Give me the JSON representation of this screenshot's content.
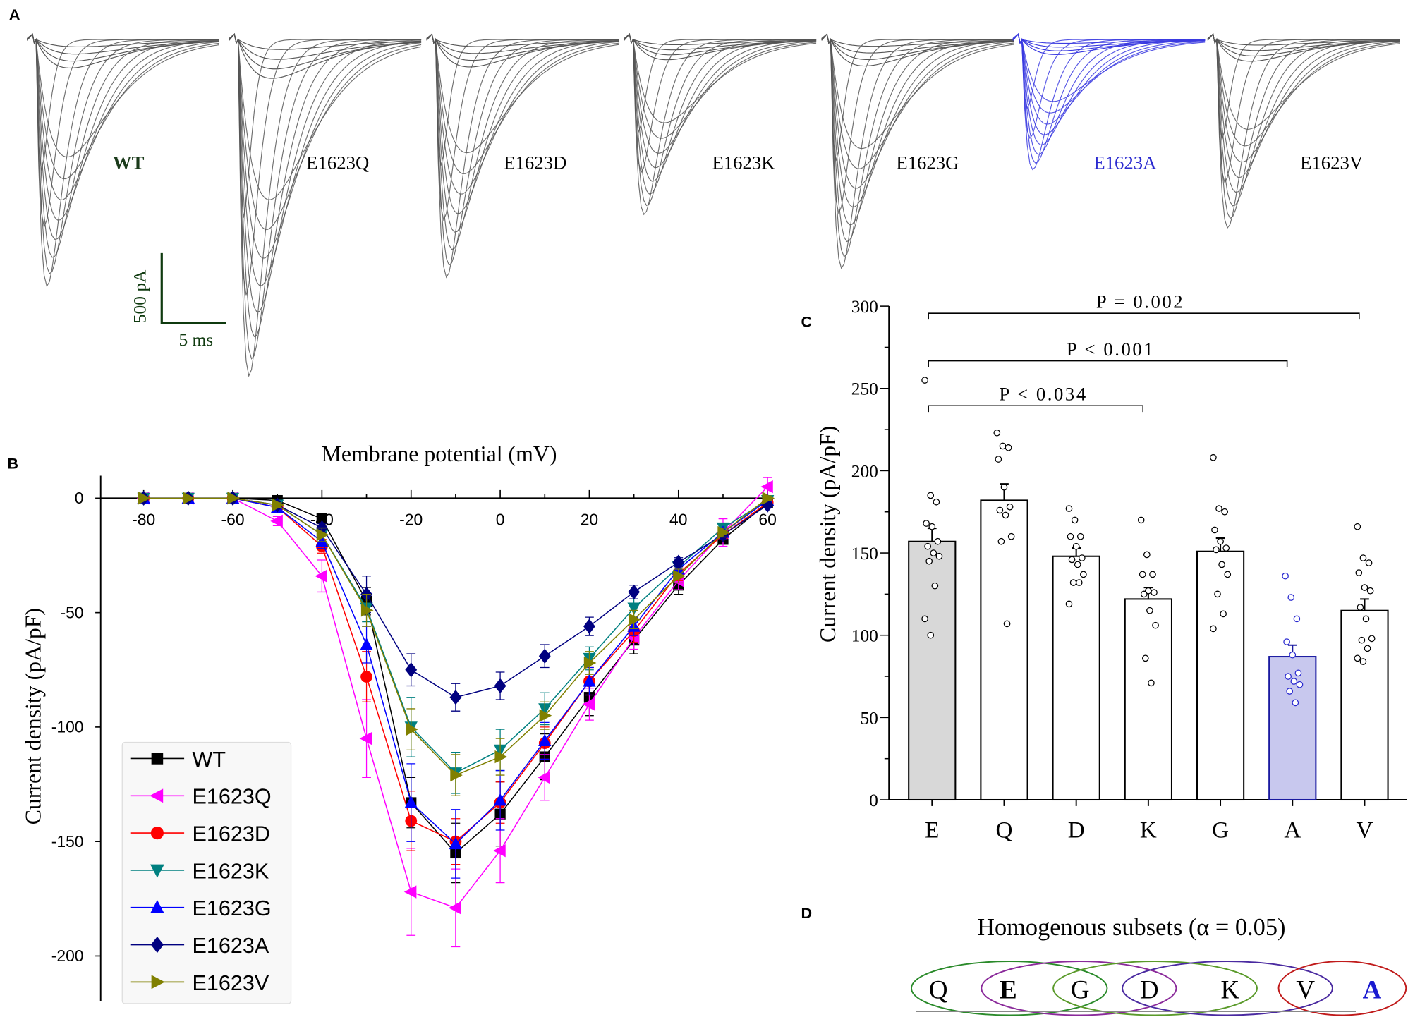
{
  "panel_letters": {
    "a": "A",
    "b": "B",
    "c": "C",
    "d": "D"
  },
  "panel_a": {
    "traces": [
      {
        "label": "WT",
        "color": "#1b3b1b",
        "trace_color": "#555555"
      },
      {
        "label": "E1623Q",
        "color": "#000000",
        "trace_color": "#555555"
      },
      {
        "label": "E1623D",
        "color": "#000000",
        "trace_color": "#555555"
      },
      {
        "label": "E1623K",
        "color": "#000000",
        "trace_color": "#555555"
      },
      {
        "label": "E1623G",
        "color": "#000000",
        "trace_color": "#555555"
      },
      {
        "label": "E1623A",
        "color": "#2a2ad0",
        "trace_color": "#3a3ae0"
      },
      {
        "label": "E1623V",
        "color": "#000000",
        "trace_color": "#555555"
      }
    ],
    "scale_bar": {
      "current": "500 pA",
      "time": "5 ms",
      "color": "#0f3a0f"
    }
  },
  "chart_data": [
    {
      "type": "line",
      "title": "Membrane potential (mV)",
      "xlabel": "Membrane potential (mV)",
      "ylabel": "Current density (pA/pF)",
      "xlim": [
        -90,
        62
      ],
      "ylim": [
        -220,
        10
      ],
      "xticks": [
        -80,
        -60,
        -40,
        -20,
        0,
        20,
        40,
        60
      ],
      "yticks": [
        0,
        -50,
        -100,
        -150,
        -200
      ],
      "legend_position": "bottom-left",
      "x": [
        -80,
        -70,
        -60,
        -50,
        -40,
        -30,
        -20,
        -10,
        0,
        10,
        20,
        30,
        40,
        50,
        60
      ],
      "series": [
        {
          "name": "WT",
          "color": "#000000",
          "marker": "square",
          "values": [
            0,
            0,
            0,
            -1,
            -9,
            -45,
            -133,
            -155,
            -138,
            -113,
            -87,
            -62,
            -38,
            -18,
            -2
          ],
          "errors": [
            0,
            0,
            0,
            1,
            2,
            6,
            11,
            13,
            14,
            10,
            8,
            6,
            4,
            2,
            2
          ]
        },
        {
          "name": "E1623Q",
          "color": "#ff00ff",
          "marker": "triangle-left",
          "values": [
            0,
            0,
            0,
            -10,
            -34,
            -105,
            -172,
            -179,
            -154,
            -122,
            -90,
            -61,
            -36,
            -15,
            5
          ],
          "errors": [
            0,
            0,
            0,
            2,
            7,
            17,
            19,
            17,
            14,
            10,
            7,
            5,
            4,
            6,
            4
          ]
        },
        {
          "name": "E1623D",
          "color": "#ff0000",
          "marker": "circle",
          "values": [
            0,
            0,
            0,
            -4,
            -21,
            -78,
            -141,
            -150,
            -133,
            -107,
            -80,
            -58,
            -33,
            -16,
            -2
          ],
          "errors": [
            0,
            0,
            0,
            1,
            3,
            11,
            13,
            10,
            9,
            7,
            6,
            5,
            3,
            2,
            1
          ]
        },
        {
          "name": "E1623K",
          "color": "#008080",
          "marker": "triangle-down",
          "values": [
            0,
            0,
            0,
            -3,
            -16,
            -48,
            -100,
            -120,
            -110,
            -92,
            -70,
            -48,
            -30,
            -13,
            -1
          ],
          "errors": [
            0,
            0,
            0,
            1,
            3,
            6,
            13,
            9,
            9,
            7,
            5,
            4,
            3,
            2,
            1
          ]
        },
        {
          "name": "E1623G",
          "color": "#0000ff",
          "marker": "triangle-up",
          "values": [
            0,
            0,
            0,
            -4,
            -19,
            -64,
            -133,
            -151,
            -132,
            -106,
            -80,
            -56,
            -31,
            -15,
            -1
          ],
          "errors": [
            0,
            0,
            0,
            1,
            3,
            8,
            17,
            15,
            13,
            8,
            6,
            4,
            3,
            2,
            1
          ]
        },
        {
          "name": "E1623A",
          "color": "#000080",
          "marker": "diamond",
          "values": [
            0,
            0,
            0,
            -3,
            -13,
            -42,
            -75,
            -87,
            -82,
            -69,
            -56,
            -41,
            -28,
            -16,
            -3
          ],
          "errors": [
            0,
            0,
            0,
            1,
            2,
            8,
            7,
            6,
            6,
            5,
            4,
            3,
            2,
            2,
            1
          ]
        },
        {
          "name": "E1623V",
          "color": "#808000",
          "marker": "triangle-right",
          "values": [
            0,
            0,
            0,
            -3,
            -16,
            -49,
            -101,
            -121,
            -113,
            -95,
            -72,
            -53,
            -34,
            -15,
            0
          ],
          "errors": [
            0,
            0,
            0,
            1,
            3,
            7,
            9,
            9,
            8,
            6,
            5,
            4,
            3,
            2,
            1
          ]
        }
      ]
    },
    {
      "type": "bar",
      "xlabel": "",
      "ylabel": "Current density (pA/pF)",
      "ylim": [
        0,
        300
      ],
      "yticks": [
        0,
        50,
        100,
        150,
        200,
        250,
        300
      ],
      "categories": [
        "E",
        "Q",
        "D",
        "K",
        "G",
        "A",
        "V"
      ],
      "values": [
        157,
        182,
        148,
        122,
        151,
        87,
        115
      ],
      "errors": [
        8,
        10,
        5,
        7,
        8,
        7,
        7
      ],
      "bar_colors": [
        "#d8d8d8",
        "#ffffff",
        "#ffffff",
        "#ffffff",
        "#ffffff",
        "#c8c8ee",
        "#ffffff"
      ],
      "edge_colors": [
        "#000000",
        "#000000",
        "#000000",
        "#000000",
        "#000000",
        "#1a1aa0",
        "#000000"
      ],
      "points": [
        [
          255,
          185,
          181,
          168,
          166,
          157,
          154,
          150,
          148,
          145,
          130,
          110,
          100
        ],
        [
          223,
          215,
          214,
          207,
          190,
          178,
          176,
          173,
          160,
          157,
          107
        ],
        [
          177,
          170,
          160,
          160,
          154,
          147,
          146,
          143,
          137,
          132,
          132,
          119
        ],
        [
          170,
          149,
          137,
          137,
          127,
          126,
          125,
          115,
          106,
          86,
          71
        ],
        [
          208,
          177,
          175,
          164,
          157,
          153,
          152,
          143,
          137,
          125,
          113,
          104
        ],
        [
          136,
          123,
          110,
          96,
          88,
          77,
          75,
          72,
          70,
          66,
          59
        ],
        [
          166,
          147,
          144,
          138,
          129,
          127,
          117,
          110,
          98,
          97,
          92,
          86,
          84
        ]
      ],
      "point_colors": [
        "#000000",
        "#000000",
        "#000000",
        "#000000",
        "#000000",
        "#2a2ad0",
        "#000000"
      ],
      "annotations": [
        {
          "text": "P = 0.002",
          "from": "E",
          "to": "V"
        },
        {
          "text": "P < 0.001",
          "from": "E",
          "to": "A"
        },
        {
          "text": "P < 0.034",
          "from": "E",
          "to": "K"
        }
      ]
    }
  ],
  "panel_d": {
    "title": "Homogenous subsets (α = 0.05)",
    "letters": [
      {
        "text": "Q",
        "color": "#000000",
        "bold": false
      },
      {
        "text": "E",
        "color": "#000000",
        "bold": true
      },
      {
        "text": "G",
        "color": "#000000",
        "bold": false
      },
      {
        "text": "D",
        "color": "#000000",
        "bold": false
      },
      {
        "text": "K",
        "color": "#000000",
        "bold": false
      },
      {
        "text": "V",
        "color": "#000000",
        "bold": false
      },
      {
        "text": "A",
        "color": "#1a1ad0",
        "bold": true
      }
    ],
    "subsets": [
      {
        "members": [
          "Q",
          "E",
          "G"
        ],
        "color": "#2a8a2a"
      },
      {
        "members": [
          "E",
          "G",
          "D"
        ],
        "color": "#8a2a9a"
      },
      {
        "members": [
          "G",
          "D",
          "K"
        ],
        "color": "#5a9a2a"
      },
      {
        "members": [
          "D",
          "K",
          "V"
        ],
        "color": "#4a2aa0"
      },
      {
        "members": [
          "V",
          "A"
        ],
        "color": "#c01a1a"
      }
    ]
  }
}
